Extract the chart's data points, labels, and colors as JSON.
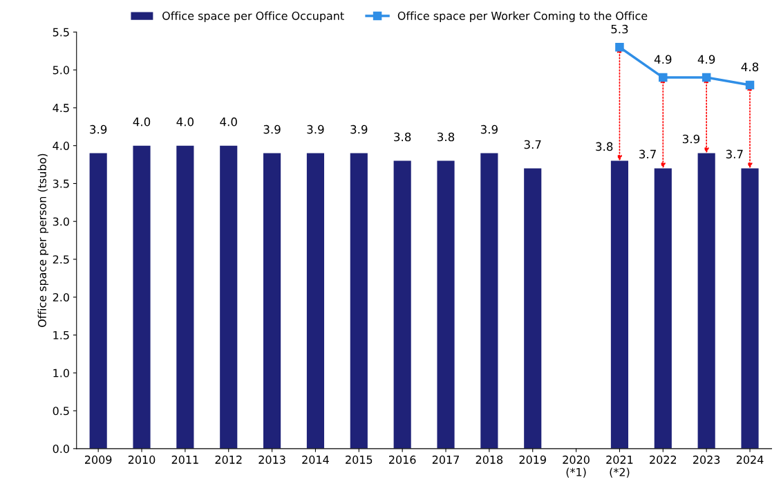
{
  "chart_data": {
    "type": "bar",
    "categories": [
      "2009",
      "2010",
      "2011",
      "2012",
      "2013",
      "2014",
      "2015",
      "2016",
      "2017",
      "2018",
      "2019",
      "2020\n(*1)",
      "2021\n(*2)",
      "2022",
      "2023",
      "2024"
    ],
    "ylabel": "Office space per person (tsubo)",
    "series": [
      {
        "name": "Office space per Office Occupant",
        "color": "#1f2278",
        "values": [
          3.9,
          4.0,
          4.0,
          4.0,
          3.9,
          3.9,
          3.9,
          3.8,
          3.8,
          3.9,
          3.7,
          null,
          3.8,
          3.7,
          3.9,
          3.7
        ],
        "value_labels": [
          "3.9",
          "4.0",
          "4.0",
          "4.0",
          "3.9",
          "3.9",
          "3.9",
          "3.8",
          "3.8",
          "3.9",
          "3.7",
          null,
          "3.8",
          "3.7",
          "3.9",
          "3.7"
        ]
      },
      {
        "name": "Office space per Worker Coming to the Office",
        "type": "line",
        "color": "#2f8ee6",
        "marker": "square",
        "values": [
          null,
          null,
          null,
          null,
          null,
          null,
          null,
          null,
          null,
          null,
          null,
          null,
          5.3,
          4.9,
          4.9,
          4.8
        ],
        "value_labels": [
          null,
          null,
          null,
          null,
          null,
          null,
          null,
          null,
          null,
          null,
          null,
          null,
          "5.3",
          "4.9",
          "4.9",
          "4.8"
        ]
      }
    ],
    "ylim": [
      0,
      5.5
    ],
    "yticks": [
      {
        "value": 0,
        "label": "0.0"
      },
      {
        "value": 0.5,
        "label": "0.5"
      },
      {
        "value": 1,
        "label": "1.0"
      },
      {
        "value": 1.5,
        "label": "1.5"
      },
      {
        "value": 2,
        "label": "2.0"
      },
      {
        "value": 2.5,
        "label": "2.5"
      },
      {
        "value": 3,
        "label": "3.0"
      },
      {
        "value": 3.5,
        "label": "3.5"
      },
      {
        "value": 4,
        "label": "4.0"
      },
      {
        "value": 4.5,
        "label": "4.5"
      },
      {
        "value": 5,
        "label": "5.0"
      },
      {
        "value": 5.5,
        "label": "5.5"
      }
    ],
    "grid": false,
    "legend": "top"
  }
}
